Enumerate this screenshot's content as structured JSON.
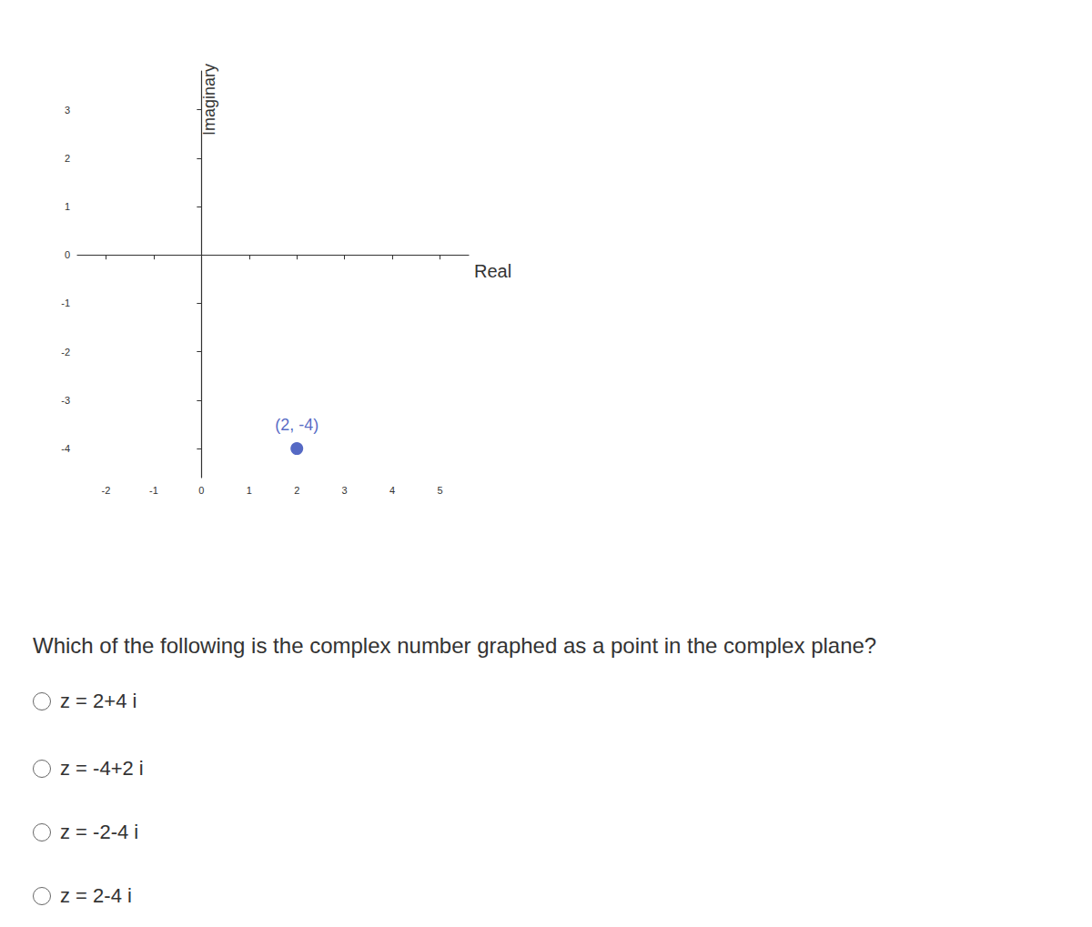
{
  "chart_data": {
    "type": "scatter",
    "x_label": "Real",
    "y_label": "Imaginary",
    "x": [
      2
    ],
    "values": [
      -4
    ],
    "value_labels": [
      "(2, -4)"
    ],
    "color": "#2a44b5",
    "data_labels": true,
    "xlim": [
      -2.6,
      5.6
    ],
    "xticks": [
      -2,
      -1,
      0,
      1,
      2,
      3,
      4,
      5
    ],
    "ylim": [
      -4.6,
      3.8
    ],
    "yticks": [
      -4,
      -3,
      -2,
      -1,
      0,
      1,
      2,
      3
    ],
    "grid": false
  },
  "question": "Which of the following is the complex number graphed as a point in the complex plane?",
  "options": [
    "z = 2+4 i",
    "z = -4+2 i",
    "z = -2-4 i",
    "z = 2-4 i"
  ]
}
